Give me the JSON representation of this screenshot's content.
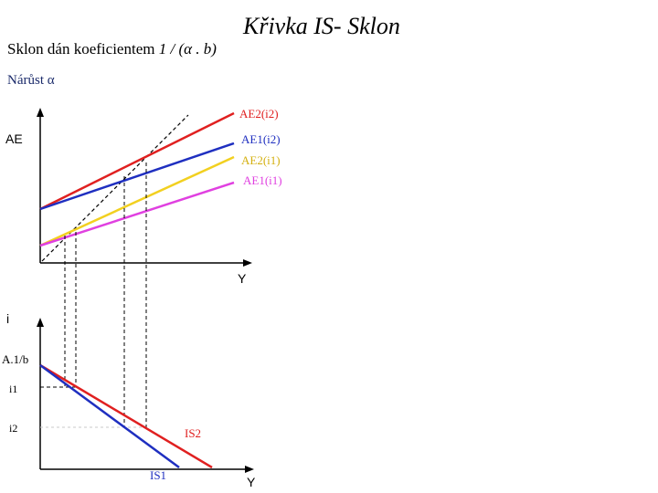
{
  "title": "Křivka IS- Sklon",
  "subtitle": {
    "text": "Sklon dán koeficientem",
    "formula": "1 / (α . b)"
  },
  "note": "Nárůst α",
  "upper_panel": {
    "y_axis_label": "AE",
    "x_axis_label": "Y",
    "lines": [
      {
        "label": "AE2(i2)",
        "color": "#e02020"
      },
      {
        "label": "AE1(i2)",
        "color": "#1f2fc0"
      },
      {
        "label": "AE2(i1)",
        "color": "#f2d020"
      },
      {
        "label": "AE1(i1)",
        "color": "#e040e0"
      }
    ]
  },
  "lower_panel": {
    "y_axis_label": "i",
    "x_axis_label": "Y",
    "intercept_label": "A.1/b",
    "tick_i1": "i1",
    "tick_i2": "i2",
    "curves": [
      {
        "label": "IS2",
        "color": "#e02020"
      },
      {
        "label": "IS1",
        "color": "#1f2fc0"
      }
    ]
  }
}
